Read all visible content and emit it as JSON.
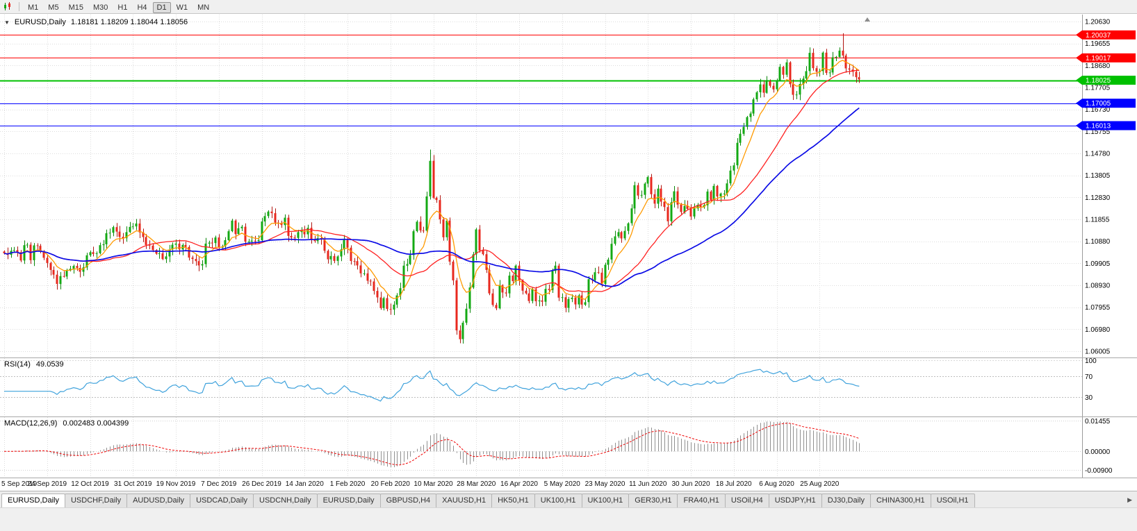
{
  "toolbar": {
    "timeframes": [
      "M1",
      "M5",
      "M15",
      "M30",
      "H1",
      "H4",
      "D1",
      "W1",
      "MN"
    ],
    "active_timeframe": "D1"
  },
  "chart": {
    "dropdown_icon": "▼",
    "symbol_label": "EURUSD,Daily",
    "ohlc_label": "1.18181 1.18209 1.18044 1.18056",
    "price_axis_labels": [
      "1.20630",
      "1.19655",
      "1.18680",
      "1.17705",
      "1.16730",
      "1.15755",
      "1.14780",
      "1.13805",
      "1.12830",
      "1.11855",
      "1.10880",
      "1.09905",
      "1.08930",
      "1.07955",
      "1.06980",
      "1.06005"
    ],
    "levels": [
      {
        "value": 1.20037,
        "label": "1.20037",
        "color": "#FF0000"
      },
      {
        "value": 1.19017,
        "label": "1.19017",
        "color": "#FF0000"
      },
      {
        "value": 1.18025,
        "label": "1.18025",
        "color": "#00C000"
      },
      {
        "value": 1.17005,
        "label": "1.17005",
        "color": "#0000FF"
      },
      {
        "value": 1.16013,
        "label": "1.16013",
        "color": "#0000FF"
      }
    ]
  },
  "rsi": {
    "label": "RSI(14)",
    "value": "49.0539",
    "color": "#3FA2DC",
    "axis_labels": [
      "100",
      "70",
      "30"
    ],
    "axis_values": [
      100,
      70,
      30
    ]
  },
  "macd": {
    "label": "MACD(12,26,9)",
    "values": "0.002483 0.004399",
    "axis_labels": [
      "0.01455",
      "0.00000",
      "-0.00900"
    ],
    "axis_values": [
      0.01455,
      0,
      -0.009
    ]
  },
  "tab_scroll_icon": "▶",
  "tabs": [
    {
      "label": "EURUSD,Daily",
      "active": true
    },
    {
      "label": "USDCHF,Daily"
    },
    {
      "label": "AUDUSD,Daily"
    },
    {
      "label": "USDCAD,Daily"
    },
    {
      "label": "USDCNH,Daily"
    },
    {
      "label": "EURUSD,Daily"
    },
    {
      "label": "GBPUSD,H4"
    },
    {
      "label": "XAUUSD,H1"
    },
    {
      "label": "HK50,H1"
    },
    {
      "label": "UK100,H1"
    },
    {
      "label": "UK100,H1"
    },
    {
      "label": "GER30,H1"
    },
    {
      "label": "FRA40,H1"
    },
    {
      "label": "USOil,H4"
    },
    {
      "label": "USDJPY,H1"
    },
    {
      "label": "DJ30,Daily"
    },
    {
      "label": "CHINA300,H1"
    },
    {
      "label": "USOil,H1"
    }
  ],
  "chart_data": {
    "type": "candlestick",
    "symbol": "EURUSD",
    "timeframe": "Daily",
    "title": "EURUSD,Daily",
    "current_ohlc": {
      "open": 1.18181,
      "high": 1.18209,
      "low": 1.18044,
      "close": 1.18056
    },
    "ylim": [
      1.06005,
      1.2063
    ],
    "x_labels": [
      "5 Sep 2019",
      "24 Sep 2019",
      "12 Oct 2019",
      "31 Oct 2019",
      "19 Nov 2019",
      "7 Dec 2019",
      "26 Dec 2019",
      "14 Jan 2020",
      "1 Feb 2020",
      "20 Feb 2020",
      "10 Mar 2020",
      "28 Mar 2020",
      "16 Apr 2020",
      "5 May 2020",
      "23 May 2020",
      "11 Jun 2020",
      "30 Jun 2020",
      "18 Jul 2020",
      "6 Aug 2020",
      "25 Aug 2020"
    ],
    "bars_per_label": 13,
    "closes": [
      1.1035,
      1.1028,
      1.1046,
      1.1049,
      1.104,
      1.1003,
      1.1071,
      1.1073,
      1.1004,
      1.107,
      1.1068,
      1.1042,
      1.1015,
      1.0992,
      1.0961,
      1.094,
      1.0899,
      1.0934,
      1.0932,
      1.0959,
      1.0966,
      1.0979,
      1.097,
      1.0953,
      1.0972,
      1.1026,
      1.104,
      1.1032,
      1.1035,
      1.1071,
      1.1075,
      1.1124,
      1.1126,
      1.1151,
      1.1131,
      1.1108,
      1.1102,
      1.1129,
      1.1152,
      1.1154,
      1.1167,
      1.1128,
      1.1107,
      1.1072,
      1.1069,
      1.1049,
      1.1033,
      1.1035,
      1.1009,
      1.1021,
      1.1052,
      1.1073,
      1.1078,
      1.1052,
      1.1072,
      1.1063,
      1.1016,
      1.101,
      1.1,
      1.0981,
      1.0987,
      1.1078,
      1.1082,
      1.108,
      1.1105,
      1.106,
      1.1065,
      1.1093,
      1.1133,
      1.118,
      1.112,
      1.1146,
      1.1153,
      1.1087,
      1.1087,
      1.1091,
      1.1089,
      1.1093,
      1.1176,
      1.12,
      1.122,
      1.1213,
      1.1171,
      1.117,
      1.116,
      1.1193,
      1.1112,
      1.1105,
      1.1103,
      1.1129,
      1.1134,
      1.1119,
      1.1148,
      1.1094,
      1.1089,
      1.1102,
      1.1096,
      1.1046,
      1.1008,
      1.1023,
      1.1001,
      1.1021,
      1.1052,
      1.1094,
      1.106,
      1.1001,
      1.1,
      1.0981,
      1.0946,
      1.0946,
      1.0913,
      1.091,
      1.0868,
      1.0839,
      1.0792,
      1.0836,
      1.0788,
      1.0785,
      1.0807,
      1.0848,
      1.088,
      1.098,
      1.0987,
      1.1027,
      1.1133,
      1.1175,
      1.1136,
      1.1135,
      1.1287,
      1.1445,
      1.1281,
      1.1271,
      1.1185,
      1.1106,
      1.118,
      1.0998,
      1.0915,
      1.0693,
      1.0654,
      1.0727,
      1.0789,
      1.0883,
      1.103,
      1.1141,
      1.1047,
      1.1031,
      1.0961,
      1.0857,
      1.0806,
      1.0791,
      1.0893,
      1.0861,
      1.0857,
      1.0936,
      1.0911,
      1.098,
      1.0914,
      1.0869,
      1.0857,
      1.0823,
      1.0875,
      1.0822,
      1.0826,
      1.082,
      1.0877,
      1.0872,
      1.0956,
      1.098,
      1.0838,
      1.084,
      1.0793,
      1.0832,
      1.0838,
      1.0808,
      1.0848,
      1.0807,
      1.0818,
      1.092,
      1.0916,
      1.0951,
      1.0949,
      1.0899,
      1.0984,
      1.1007,
      1.1077,
      1.111,
      1.1129,
      1.1101,
      1.1134,
      1.1168,
      1.1234,
      1.1337,
      1.1291,
      1.1294,
      1.1344,
      1.1373,
      1.1297,
      1.1255,
      1.1322,
      1.1264,
      1.124,
      1.1177,
      1.1261,
      1.131,
      1.1251,
      1.1218,
      1.1245,
      1.1232,
      1.1198,
      1.1234,
      1.125,
      1.1239,
      1.1248,
      1.1309,
      1.1271,
      1.1334,
      1.1287,
      1.13,
      1.13,
      1.1345,
      1.1402,
      1.1425,
      1.1525,
      1.1565,
      1.1596,
      1.1639,
      1.1655,
      1.1718,
      1.1749,
      1.1784,
      1.1747,
      1.1798,
      1.1778,
      1.1762,
      1.1803,
      1.1862,
      1.1827,
      1.1882,
      1.1785,
      1.1738,
      1.1739,
      1.1786,
      1.181,
      1.1843,
      1.1924,
      1.1856,
      1.184,
      1.1843,
      1.1925,
      1.1835,
      1.1837,
      1.1904,
      1.1906,
      1.1934,
      1.1912,
      1.1855,
      1.185,
      1.184,
      1.1816,
      1.1806
    ],
    "wick_overrides": {
      "116": {
        "low": 1.0778
      },
      "129": {
        "high": 1.1495
      },
      "138": {
        "low": 1.0636
      },
      "254": {
        "high": 1.2011
      }
    },
    "overlays": [
      {
        "name": "EMA(8)",
        "type": "ema",
        "period": 8,
        "color": "#FF9A00"
      },
      {
        "name": "SMA(25)",
        "type": "sma",
        "period": 25,
        "color": "#FF2020"
      },
      {
        "name": "SMA(50)",
        "type": "sma",
        "period": 50,
        "color": "#0B0BE6"
      }
    ],
    "horizontal_lines": [
      1.20037,
      1.19017,
      1.18025,
      1.17005,
      1.16013
    ],
    "indicators": [
      {
        "name": "RSI",
        "period": 14,
        "current": 49.0539,
        "levels": [
          30,
          70
        ]
      },
      {
        "name": "MACD",
        "fast": 12,
        "slow": 26,
        "signal": 9,
        "current_macd": 0.002483,
        "current_signal": 0.004399
      }
    ]
  }
}
